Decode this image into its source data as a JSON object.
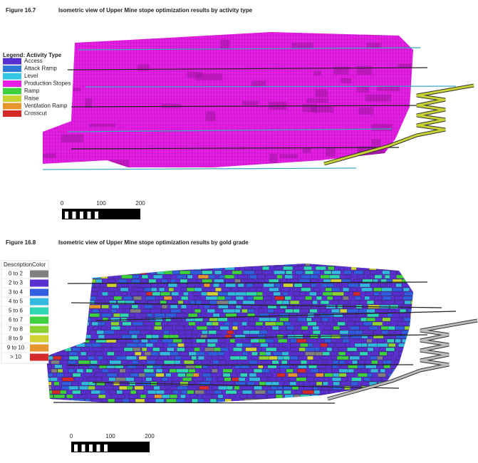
{
  "figures": [
    {
      "label": "Figure 16.7",
      "caption": "Isometric view of Upper Mine stope optimization results by activity type",
      "legend": {
        "title": "Legend: Activity Type",
        "items": [
          {
            "label": "Access",
            "color": "#5a2fd2"
          },
          {
            "label": "Attack Ramp",
            "color": "#2f7ad8"
          },
          {
            "label": "Level",
            "color": "#35c6e6"
          },
          {
            "label": "Production Stopes",
            "color": "#e61ee6"
          },
          {
            "label": "Ramp",
            "color": "#3dd23d"
          },
          {
            "label": "Raise",
            "color": "#c8d232"
          },
          {
            "label": "Ventilation Ramp",
            "color": "#e6962d"
          },
          {
            "label": "Crosscut",
            "color": "#d42a2a"
          }
        ]
      },
      "scale": [
        "0",
        "100",
        "200"
      ]
    },
    {
      "label": "Figure 16.8",
      "caption": "Isometric view of Upper Mine stope optimization results by gold grade",
      "legend": {
        "headers": [
          "Description",
          "Color"
        ],
        "rows": [
          {
            "label": "0 to 2",
            "color": "#808080"
          },
          {
            "label": "2 to 3",
            "color": "#5a2fd2"
          },
          {
            "label": "3 to 4",
            "color": "#2f5ee0"
          },
          {
            "label": "4 to 5",
            "color": "#33b8e0"
          },
          {
            "label": "5 to 6",
            "color": "#2fd6b4"
          },
          {
            "label": "6 to 7",
            "color": "#3dd23d"
          },
          {
            "label": "7 to 8",
            "color": "#8cd232"
          },
          {
            "label": "8 to 9",
            "color": "#d2d232"
          },
          {
            "label": "9 to 10",
            "color": "#e6962d"
          },
          {
            "label": "> 10",
            "color": "#d42a2a"
          }
        ]
      },
      "scale": [
        "0",
        "100",
        "200"
      ]
    }
  ]
}
